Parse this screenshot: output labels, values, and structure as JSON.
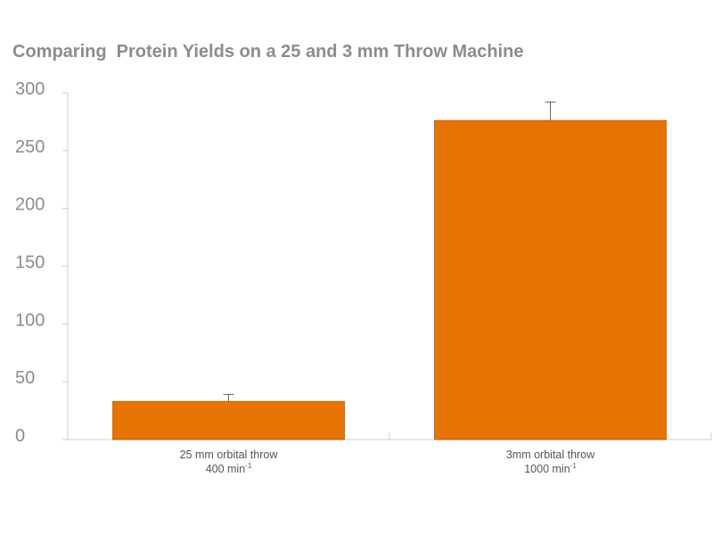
{
  "chart_data": {
    "type": "bar",
    "title": "Comparing  Protein Yields on a 25 and 3 mm Throw Machine",
    "xlabel": "",
    "ylabel": "",
    "ylim": [
      0,
      300
    ],
    "yticks": [
      "0",
      "50",
      "100",
      "150",
      "200",
      "250",
      "300"
    ],
    "categories": [
      {
        "line1": "25 mm orbital throw",
        "line2": "400 min",
        "sup": "-1"
      },
      {
        "line1": "3mm orbital throw",
        "line2": "1000 min",
        "sup": "-1"
      }
    ],
    "values": [
      33,
      276
    ],
    "error_plus": [
      6,
      16
    ],
    "bar_color": "#e87305",
    "axis_color": "#cccccc",
    "grid": false,
    "legend": "none"
  }
}
